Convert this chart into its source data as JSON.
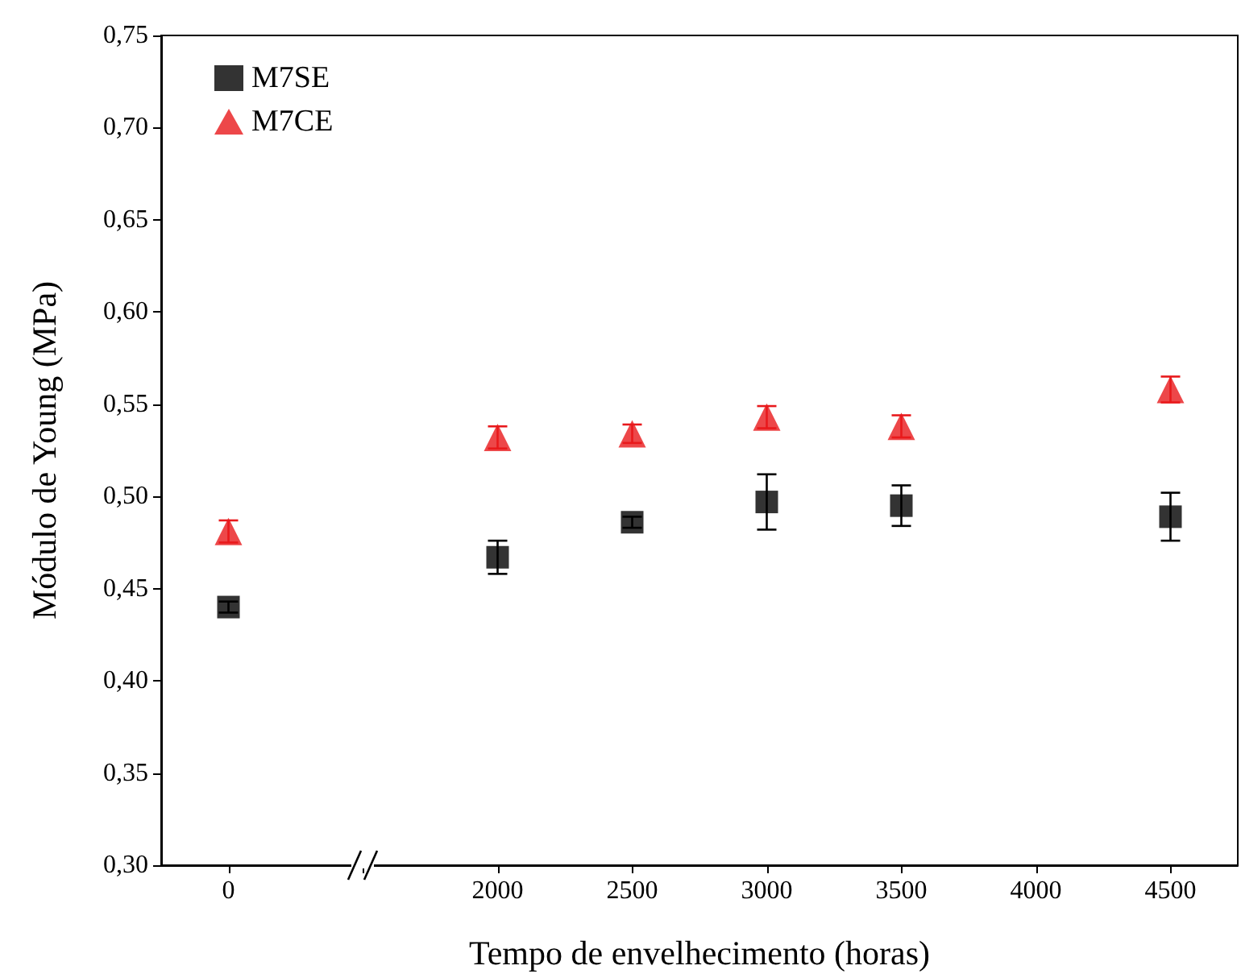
{
  "chart_data": {
    "type": "scatter",
    "xlabel": "Tempo de envelhecimento (horas)",
    "ylabel": "Módulo de Young (MPa)",
    "categories": [
      "0",
      null,
      "2000",
      "2500",
      "3000",
      "3500",
      "4000",
      "4500"
    ],
    "series": [
      {
        "name": "M7SE",
        "color": "#000000",
        "marker": "square",
        "values": [
          0.44,
          null,
          0.467,
          0.486,
          0.497,
          0.495,
          null,
          0.489
        ],
        "errors": [
          0.003,
          null,
          0.009,
          0.003,
          0.015,
          0.011,
          null,
          0.013
        ]
      },
      {
        "name": "M7CE",
        "color": "#e8191c",
        "marker": "triangle",
        "values": [
          0.481,
          null,
          0.532,
          0.534,
          0.543,
          0.538,
          null,
          0.558
        ],
        "errors": [
          0.006,
          null,
          0.006,
          0.005,
          0.006,
          0.006,
          null,
          0.007
        ]
      }
    ],
    "ylim": [
      0.3,
      0.75
    ],
    "yticks": [
      {
        "value": 0.3,
        "label": "0,30"
      },
      {
        "value": 0.35,
        "label": "0,35"
      },
      {
        "value": 0.4,
        "label": "0,40"
      },
      {
        "value": 0.45,
        "label": "0,45"
      },
      {
        "value": 0.5,
        "label": "0,50"
      },
      {
        "value": 0.55,
        "label": "0,55"
      },
      {
        "value": 0.6,
        "label": "0,60"
      },
      {
        "value": 0.65,
        "label": "0,65"
      },
      {
        "value": 0.7,
        "label": "0,70"
      },
      {
        "value": 0.75,
        "label": "0,75"
      }
    ],
    "grid": false,
    "legend": "top left"
  }
}
